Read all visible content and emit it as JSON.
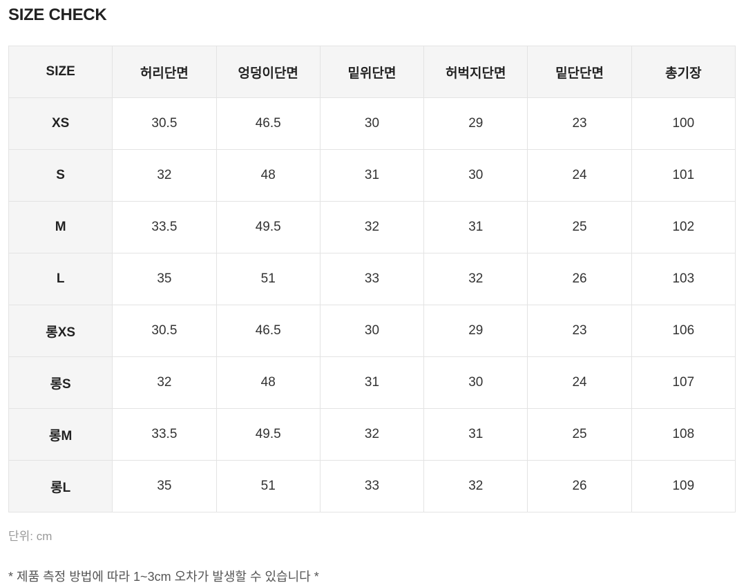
{
  "title": "SIZE CHECK",
  "table": {
    "headers": [
      "SIZE",
      "허리단면",
      "엉덩이단면",
      "밑위단면",
      "허벅지단면",
      "밑단단면",
      "총기장"
    ],
    "rows": [
      {
        "size": "XS",
        "cells": [
          "30.5",
          "46.5",
          "30",
          "29",
          "23",
          "100"
        ]
      },
      {
        "size": "S",
        "cells": [
          "32",
          "48",
          "31",
          "30",
          "24",
          "101"
        ]
      },
      {
        "size": "M",
        "cells": [
          "33.5",
          "49.5",
          "32",
          "31",
          "25",
          "102"
        ]
      },
      {
        "size": "L",
        "cells": [
          "35",
          "51",
          "33",
          "32",
          "26",
          "103"
        ]
      },
      {
        "size": "롱XS",
        "cells": [
          "30.5",
          "46.5",
          "30",
          "29",
          "23",
          "106"
        ]
      },
      {
        "size": "롱S",
        "cells": [
          "32",
          "48",
          "31",
          "30",
          "24",
          "107"
        ]
      },
      {
        "size": "롱M",
        "cells": [
          "33.5",
          "49.5",
          "32",
          "31",
          "25",
          "108"
        ]
      },
      {
        "size": "롱L",
        "cells": [
          "35",
          "51",
          "33",
          "32",
          "26",
          "109"
        ]
      }
    ]
  },
  "unit_label": "단위: cm",
  "note": "* 제품 측정 방법에 따라 1~3cm 오차가 발생할 수 있습니다 *"
}
